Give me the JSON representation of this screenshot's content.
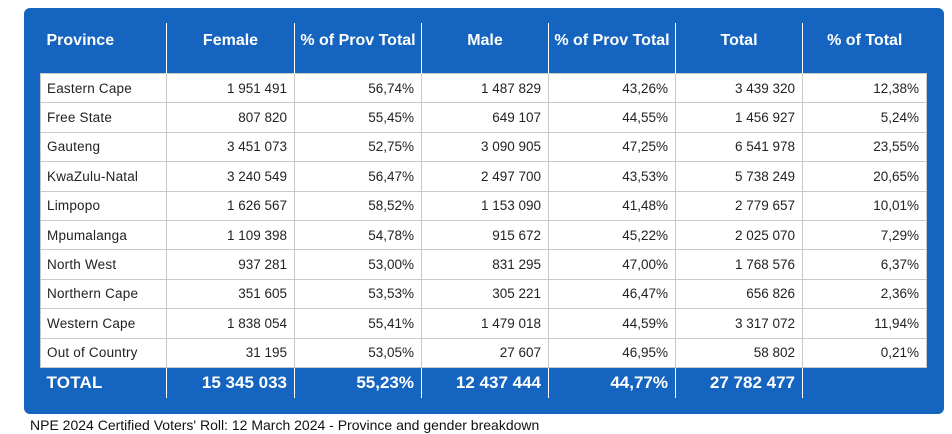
{
  "headers": [
    "Province",
    "Female",
    "% of Prov Total",
    "Male",
    "% of Prov Total",
    "Total",
    "% of Total"
  ],
  "rows": [
    [
      "Eastern Cape",
      "1 951 491",
      "56,74%",
      "1 487 829",
      "43,26%",
      "3 439 320",
      "12,38%"
    ],
    [
      "Free State",
      "807 820",
      "55,45%",
      "649 107",
      "44,55%",
      "1 456 927",
      "5,24%"
    ],
    [
      "Gauteng",
      "3 451 073",
      "52,75%",
      "3 090 905",
      "47,25%",
      "6 541 978",
      "23,55%"
    ],
    [
      "KwaZulu-Natal",
      "3 240 549",
      "56,47%",
      "2 497 700",
      "43,53%",
      "5 738 249",
      "20,65%"
    ],
    [
      "Limpopo",
      "1 626 567",
      "58,52%",
      "1 153 090",
      "41,48%",
      "2 779 657",
      "10,01%"
    ],
    [
      "Mpumalanga",
      "1 109 398",
      "54,78%",
      "915 672",
      "45,22%",
      "2 025 070",
      "7,29%"
    ],
    [
      "North West",
      "937 281",
      "53,00%",
      "831 295",
      "47,00%",
      "1 768 576",
      "6,37%"
    ],
    [
      "Northern Cape",
      "351 605",
      "53,53%",
      "305 221",
      "46,47%",
      "656 826",
      "2,36%"
    ],
    [
      "Western Cape",
      "1 838 054",
      "55,41%",
      "1 479 018",
      "44,59%",
      "3 317 072",
      "11,94%"
    ],
    [
      "Out of Country",
      "31 195",
      "53,05%",
      "27 607",
      "46,95%",
      "58 802",
      "0,21%"
    ]
  ],
  "total": [
    "TOTAL",
    "15 345 033",
    "55,23%",
    "12 437 444",
    "44,77%",
    "27 782 477",
    ""
  ],
  "caption": "NPE 2024 Certified Voters' Roll: 12 March 2024 - Province and gender breakdown",
  "colors": {
    "header_bg": "#1565c0",
    "header_text": "#ffffff",
    "grid": "#c9c9c9"
  }
}
